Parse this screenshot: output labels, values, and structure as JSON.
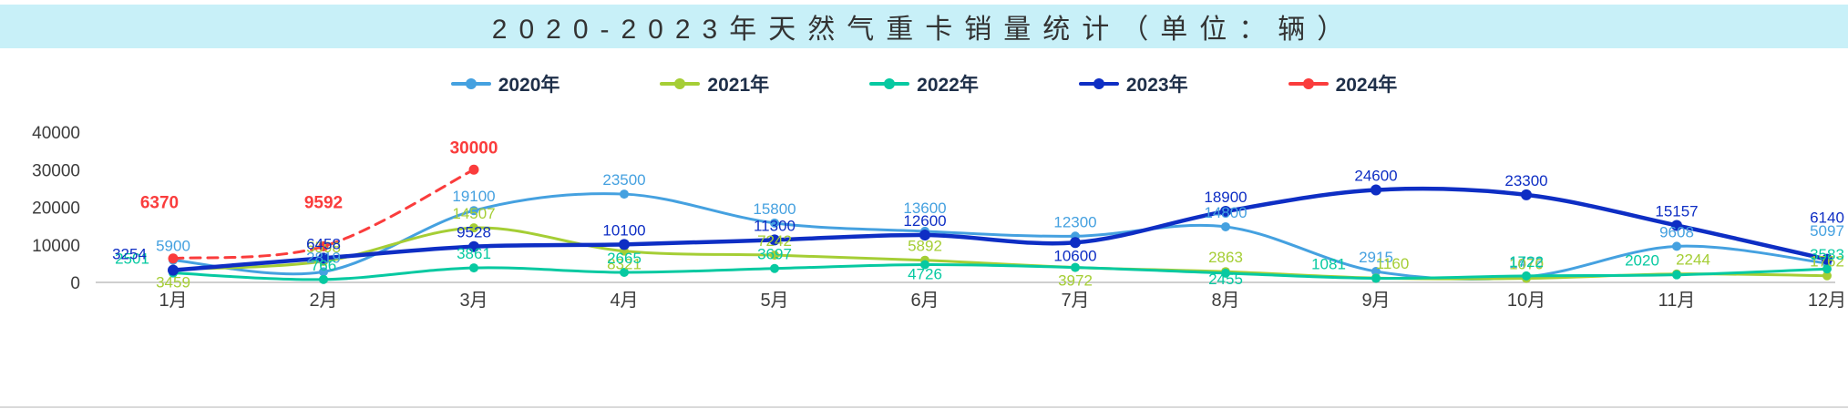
{
  "title": "2020-2023年天然气重卡销量统计（单位：辆）",
  "colors": {
    "banner_bg": "#C8F0F8",
    "axis_text": "#3C3C3C",
    "legend_text": "#1E2F49",
    "axis_line": "#BFBFBF",
    "bottom_divider": "#D9D9D9"
  },
  "chart_data": {
    "type": "line",
    "title": "2020-2023年天然气重卡销量统计（单位：辆）",
    "categories": [
      "1月",
      "2月",
      "3月",
      "4月",
      "5月",
      "6月",
      "7月",
      "8月",
      "9月",
      "10月",
      "11月",
      "12月"
    ],
    "ylim": [
      0,
      40000
    ],
    "y_ticks": [
      0,
      10000,
      20000,
      30000,
      40000
    ],
    "grid": false,
    "legend_position": "top",
    "smooth": true,
    "series": [
      {
        "name": "2020年",
        "color": "#45A1E0",
        "dashed": false,
        "values": [
          5900,
          2819,
          19100,
          23500,
          15800,
          13600,
          12300,
          14800,
          2915,
          1476,
          9608,
          5097
        ]
      },
      {
        "name": "2021年",
        "color": "#A5CE35",
        "dashed": false,
        "values": [
          3459,
          5598,
          14507,
          8321,
          7242,
          5892,
          3972,
          2863,
          1160,
          1070,
          2244,
          1762
        ]
      },
      {
        "name": "2022年",
        "color": "#06C9A1",
        "dashed": false,
        "values": [
          2501,
          766,
          3861,
          2665,
          3697,
          4726,
          3972,
          2455,
          1081,
          1722,
          2020,
          3583
        ]
      },
      {
        "name": "2023年",
        "color": "#0E2EC4",
        "dashed": false,
        "values": [
          3254,
          6458,
          9528,
          10100,
          11300,
          12600,
          10600,
          18900,
          24600,
          23300,
          15157,
          6140
        ]
      },
      {
        "name": "2024年",
        "color": "#FA3C3C",
        "dashed": true,
        "values": [
          6370,
          9592,
          30000
        ]
      }
    ]
  }
}
